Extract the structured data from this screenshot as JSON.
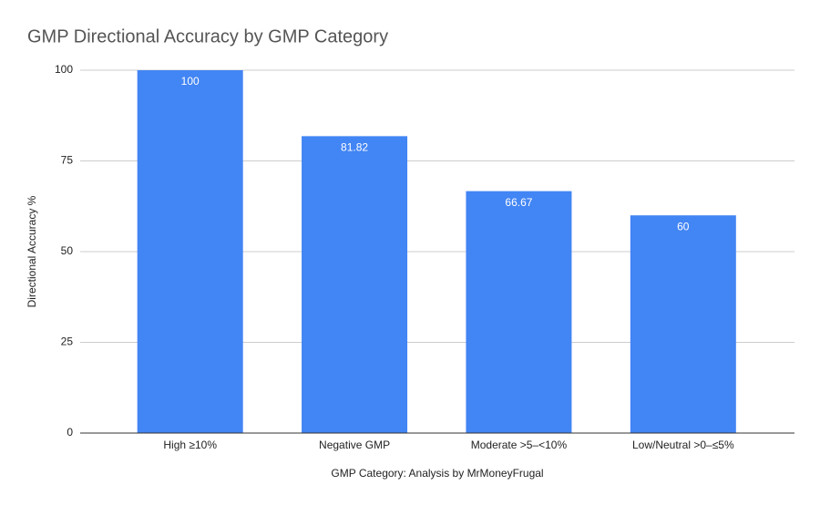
{
  "chart_data": {
    "type": "bar",
    "title": "GMP Directional Accuracy by GMP Category",
    "x_label": "GMP Category: Analysis by MrMoneyFrugal",
    "y_label": "Directional Accuracy %",
    "categories": [
      "High ≥10%",
      "Negative GMP",
      "Moderate >5–<10%",
      "Low/Neutral >0–≤5%"
    ],
    "values": [
      100,
      81.82,
      66.67,
      60
    ],
    "color": "#4285f4",
    "ylim": [
      0,
      100
    ],
    "yticks": [
      0,
      25,
      50,
      75,
      100
    ],
    "grid": true
  }
}
